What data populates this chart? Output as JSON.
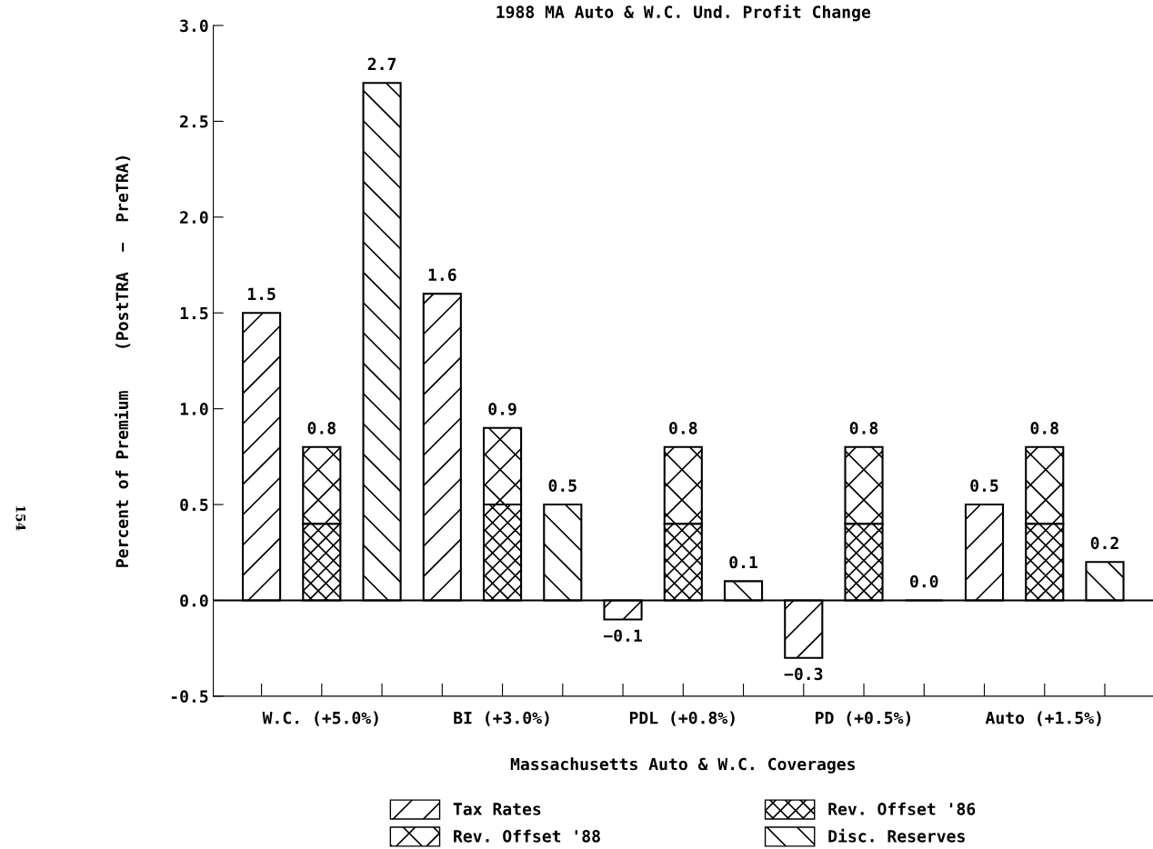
{
  "chart_data": {
    "type": "bar",
    "title": "1988 MA Auto & W.C. Und. Profit Change",
    "xlabel": "Massachusetts Auto & W.C. Coverages",
    "ylabel": "Percent of Premium    (PostTRA  −  PreTRA)",
    "categories": [
      null,
      "W.C. (+5.0%)",
      null,
      null,
      "BI (+3.0%)",
      null,
      null,
      "PDL (+0.8%)",
      null,
      null,
      "PD (+0.5%)",
      null,
      null,
      "Auto (+1.5%)",
      null
    ],
    "stacked": true,
    "series": [
      {
        "name": "Tax Rates",
        "color": "#000000",
        "values": [
          1.5,
          null,
          null,
          1.6,
          null,
          null,
          -0.1,
          null,
          null,
          -0.3,
          null,
          null,
          0.5,
          null,
          null
        ],
        "value_labels": [
          "1.5",
          null,
          null,
          "1.6",
          null,
          null,
          "−0.1",
          null,
          null,
          "−0.3",
          null,
          null,
          "0.5",
          null,
          null
        ]
      },
      {
        "name": "Rev. Offset '86",
        "color": "#000000",
        "values": [
          null,
          0.4,
          null,
          null,
          0.5,
          null,
          null,
          0.4,
          null,
          null,
          0.4,
          null,
          null,
          0.4,
          null
        ]
      },
      {
        "name": "Rev. Offset '88",
        "color": "#000000",
        "values": [
          null,
          0.4,
          null,
          null,
          0.4,
          null,
          null,
          0.4,
          null,
          null,
          0.4,
          null,
          null,
          0.4,
          null
        ]
      },
      {
        "name": "Disc. Reserves",
        "color": "#000000",
        "values": [
          null,
          null,
          2.7,
          null,
          null,
          0.5,
          null,
          null,
          0.1,
          null,
          null,
          0.0,
          null,
          null,
          0.2
        ],
        "value_labels": [
          null,
          null,
          "2.7",
          null,
          null,
          "0.5",
          null,
          null,
          "0.1",
          null,
          null,
          "0.0",
          null,
          null,
          "0.2"
        ]
      }
    ],
    "totals": [
      null,
      "0.8",
      null,
      null,
      "0.9",
      null,
      null,
      "0.8",
      null,
      null,
      "0.8",
      null,
      null,
      "0.8",
      null
    ],
    "ylim": [
      -0.5,
      3.0
    ],
    "yticks": [
      {
        "value": -0.5,
        "label": "-0.5"
      },
      {
        "value": 0.0,
        "label": "0.0"
      },
      {
        "value": 0.5,
        "label": "0.5"
      },
      {
        "value": 1.0,
        "label": "1.0"
      },
      {
        "value": 1.5,
        "label": "1.5"
      },
      {
        "value": 2.0,
        "label": "2.0"
      },
      {
        "value": 2.5,
        "label": "2.5"
      },
      {
        "value": 3.0,
        "label": "3.0"
      }
    ],
    "ref_lines": [
      {
        "axis": "y",
        "value": 0,
        "color": "#000000"
      }
    ],
    "grid": false,
    "legend": "bottom",
    "annotations": [
      "154"
    ]
  }
}
